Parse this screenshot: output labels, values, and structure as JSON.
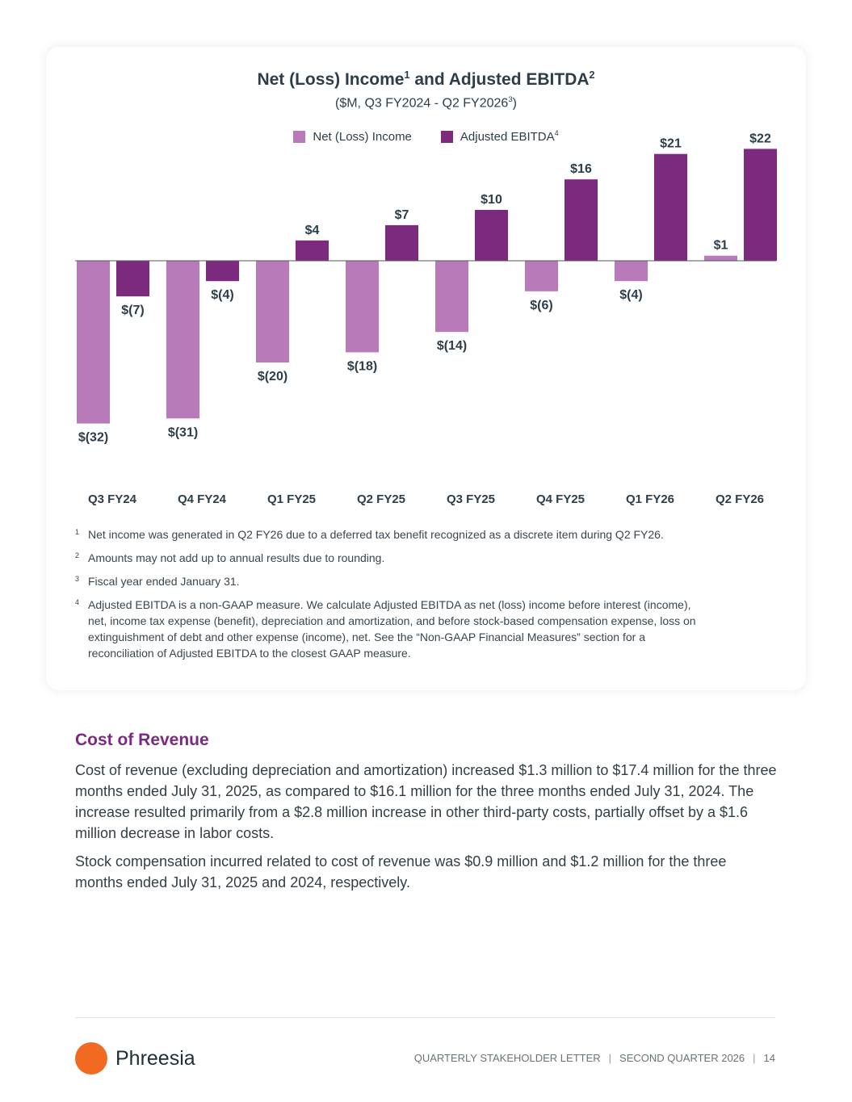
{
  "chart_data": {
    "type": "bar",
    "title": "Net (Loss) Income",
    "title_sup1": "1",
    "title_mid": " and Adjusted EBITDA",
    "title_sup2": "2",
    "subtitle": "($M, Q3 FY2024 - Q2 FY2026",
    "subtitle_sup": "3",
    "subtitle_end": ")",
    "categories": [
      "Q3 FY24",
      "Q4 FY24",
      "Q1 FY25",
      "Q2 FY25",
      "Q3 FY25",
      "Q4 FY25",
      "Q1 FY26",
      "Q2 FY26"
    ],
    "series": [
      {
        "name": "Net (Loss) Income",
        "color": "#b87ab8",
        "values": [
          -32,
          -31,
          -20,
          -18,
          -14,
          -6,
          -4,
          1
        ],
        "labels": [
          "$(32)",
          "$(31)",
          "$(20)",
          "$(18)",
          "$(14)",
          "$(6)",
          "$(4)",
          "$1"
        ]
      },
      {
        "name": "Adjusted EBITDA",
        "name_sup": "4",
        "color": "#7b2a7d",
        "values": [
          -7,
          -4,
          4,
          7,
          10,
          16,
          21,
          22
        ],
        "labels": [
          "$(7)",
          "$(4)",
          "$4",
          "$7",
          "$10",
          "$16",
          "$21",
          "$22"
        ]
      }
    ],
    "grid": false,
    "legend": "top"
  },
  "footnotes": [
    {
      "n": "1",
      "text": "Net income was generated in Q2 FY26 due to a deferred tax benefit recognized as a discrete item during Q2 FY26."
    },
    {
      "n": "2",
      "text": "Amounts may not add up to annual results due to rounding."
    },
    {
      "n": "3",
      "text": "Fiscal year ended January 31."
    },
    {
      "n": "4",
      "text": "Adjusted EBITDA is a non-GAAP measure. We calculate Adjusted EBITDA as net (loss) income before interest (income), net, income tax expense (benefit), depreciation and amortization, and before stock-based compensation expense, loss on extinguishment of debt and other expense (income), net. See the “Non-GAAP Financial Measures” section for a reconciliation of Adjusted EBITDA to the closest GAAP measure."
    }
  ],
  "section": {
    "heading": "Cost of Revenue",
    "paragraphs": [
      "Cost of revenue (excluding depreciation and amortization) increased $1.3 million to $17.4 million for the three months ended July 31, 2025, as compared to $16.1 million for the three months ended July 31, 2024. The increase resulted primarily from a $2.8 million increase in other third-party costs, partially offset by a $1.6 million decrease in labor costs.",
      "Stock compensation incurred related to cost of revenue was $0.9 million and $1.2 million for the three months ended July 31, 2025 and 2024, respectively."
    ]
  },
  "footer": {
    "brand": "Phreesia",
    "brand_color": "#f26a21",
    "doc": "QUARTERLY STAKEHOLDER LETTER",
    "period": "SECOND QUARTER 2026",
    "page": "14"
  }
}
